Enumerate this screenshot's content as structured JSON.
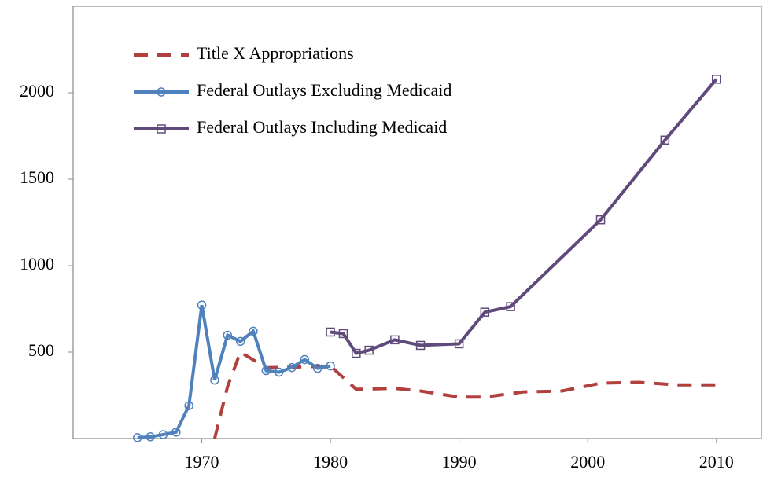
{
  "chart_data": {
    "type": "line",
    "xlim": [
      1960,
      2013.5
    ],
    "xticks": [
      1970,
      1980,
      1990,
      2000,
      2010
    ],
    "ylim": [
      0,
      2500
    ],
    "yticks": [
      500,
      1000,
      1500,
      2000
    ],
    "legend": "upper-left",
    "series": [
      {
        "name": "Title X Appropriations",
        "color": "#b0413e",
        "style": "dashed",
        "marker": "none",
        "x": [
          1971,
          1972,
          1973,
          1975,
          1978,
          1980,
          1982,
          1985,
          1987,
          1990,
          1992,
          1995,
          1998,
          2001,
          2004,
          2007,
          2010
        ],
        "values": [
          0,
          300,
          500,
          410,
          415,
          420,
          285,
          290,
          275,
          240,
          240,
          270,
          275,
          320,
          325,
          310,
          310
        ]
      },
      {
        "name": "Federal Outlays Excluding Medicaid",
        "color": "#4f81bd",
        "style": "solid",
        "marker": "circle",
        "x": [
          1965,
          1966,
          1967,
          1968,
          1969,
          1970,
          1971,
          1972,
          1973,
          1974,
          1975,
          1976,
          1977,
          1978,
          1979,
          1980
        ],
        "values": [
          5,
          10,
          23,
          37,
          190,
          772,
          338,
          598,
          562,
          621,
          393,
          384,
          411,
          457,
          406,
          420
        ]
      },
      {
        "name": "Federal Outlays Including Medicaid",
        "color": "#604a7b",
        "style": "solid",
        "marker": "square",
        "x": [
          1980,
          1981,
          1982,
          1983,
          1985,
          1987,
          1990,
          1992,
          1994,
          2001,
          2006,
          2010
        ],
        "values": [
          616,
          607,
          493,
          511,
          571,
          539,
          548,
          731,
          763,
          1265,
          1726,
          2078
        ]
      }
    ]
  }
}
